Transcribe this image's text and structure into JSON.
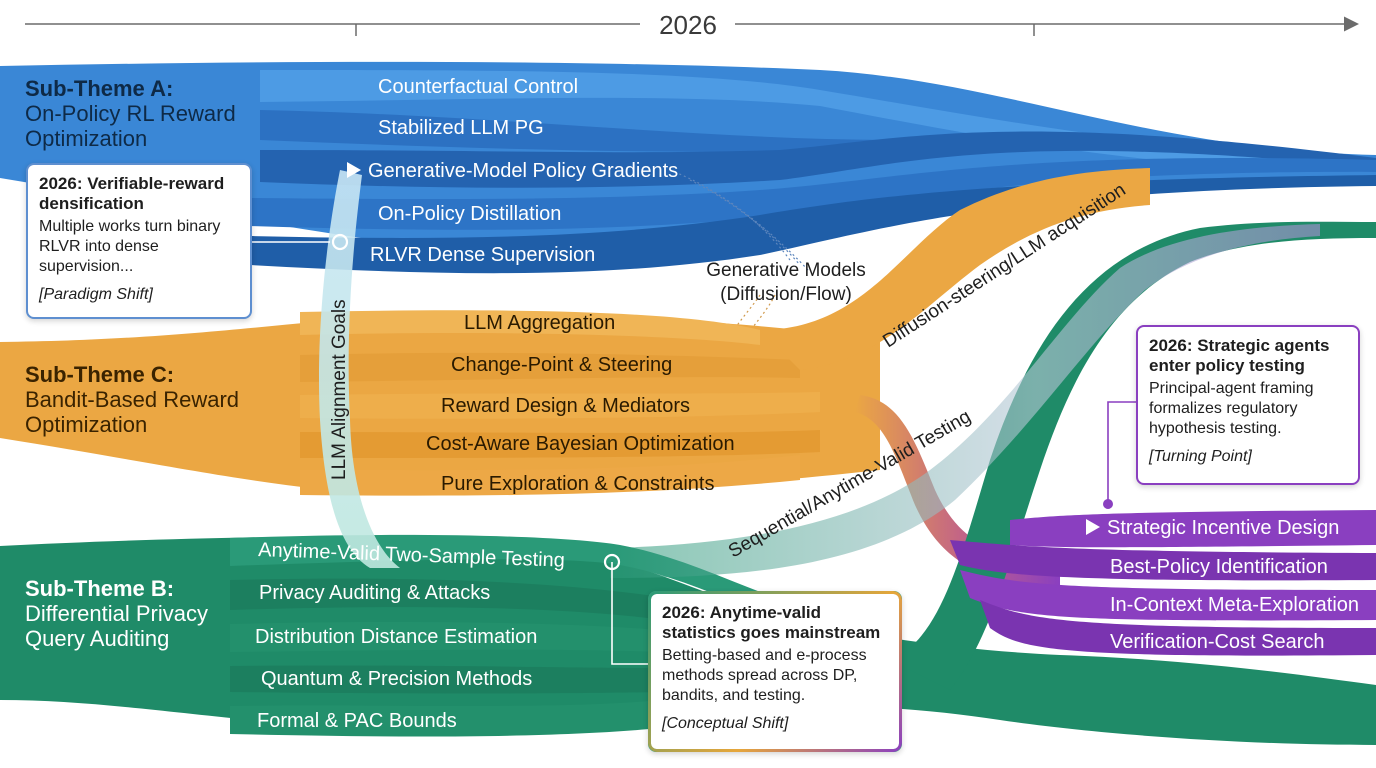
{
  "year_label": "2026",
  "colors": {
    "theme_a": "#3a87d6",
    "theme_a_dark": "#1f5ea8",
    "theme_c": "#eba743",
    "theme_b": "#1f8b68",
    "strategic": "#8a3fc0",
    "timeline": "#6b6b6b"
  },
  "theme_a": {
    "title": "Sub-Theme A:",
    "subtitle": "On-Policy RL Reward Optimization",
    "streams": [
      {
        "label": "Counterfactual Control"
      },
      {
        "label": "Stabilized LLM PG"
      },
      {
        "label": "Generative-Model Policy Gradients",
        "marker": "play-icon"
      },
      {
        "label": "On-Policy Distillation"
      },
      {
        "label": "RLVR Dense Supervision"
      }
    ]
  },
  "theme_c": {
    "title": "Sub-Theme C:",
    "subtitle": "Bandit-Based Reward Optimization",
    "streams": [
      {
        "label": "LLM Aggregation"
      },
      {
        "label": "Change-Point & Steering"
      },
      {
        "label": "Reward Design & Mediators"
      },
      {
        "label": "Cost-Aware Bayesian Optimization"
      },
      {
        "label": "Pure Exploration & Constraints"
      }
    ]
  },
  "theme_b": {
    "title": "Sub-Theme B:",
    "subtitle": "Differential Privacy Query Auditing",
    "streams": [
      {
        "label": "Anytime-Valid Two-Sample Testing"
      },
      {
        "label": "Privacy Auditing & Attacks"
      },
      {
        "label": "Distribution Distance Estimation"
      },
      {
        "label": "Quantum & Precision Methods"
      },
      {
        "label": "Formal & PAC Bounds"
      }
    ]
  },
  "strategic": {
    "streams": [
      {
        "label": "Strategic Incentive Design",
        "marker": "play-icon"
      },
      {
        "label": "Best-Policy Identification"
      },
      {
        "label": "In-Context Meta-Exploration"
      },
      {
        "label": "Verification-Cost Search"
      }
    ]
  },
  "cross_links": {
    "llm_alignment": "LLM Alignment Goals",
    "generative_models_line1": "Generative Models",
    "generative_models_line2": "(Diffusion/Flow)",
    "diffusion_steering": "Diffusion-steering/LLM acquisition",
    "sequential_testing": "Sequential/Anytime-Valid Testing"
  },
  "callouts": {
    "verifiable": {
      "title": "2026: Verifiable-reward densification",
      "body": "Multiple works turn binary RLVR into dense supervision...",
      "tag": "[Paradigm Shift]"
    },
    "strategic": {
      "title": "2026: Strategic agents enter policy testing",
      "body": "Principal-agent framing formalizes regulatory hypothesis testing.",
      "tag": "[Turning Point]"
    },
    "anytime": {
      "title": "2026: Anytime-valid statistics goes mainstream",
      "body": "Betting-based and e-process methods spread across DP, bandits, and testing.",
      "tag": "[Conceptual Shift]"
    }
  }
}
